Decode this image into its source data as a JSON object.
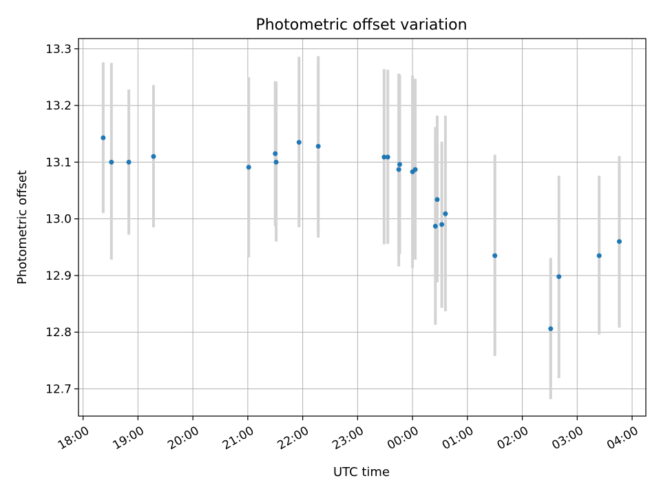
{
  "chart_data": {
    "type": "scatter",
    "title": "Photometric offset variation",
    "xlabel": "UTC time",
    "ylabel": "Photometric offset",
    "grid": true,
    "xlim": [
      "17:55",
      "04:15"
    ],
    "ylim": [
      12.652,
      13.318
    ],
    "x_ticks": [
      "18:00",
      "19:00",
      "20:00",
      "21:00",
      "22:00",
      "23:00",
      "00:00",
      "01:00",
      "02:00",
      "03:00",
      "04:00"
    ],
    "y_ticks": [
      12.7,
      12.8,
      12.9,
      13.0,
      13.1,
      13.2,
      13.3
    ],
    "y_tick_labels": [
      "12.7",
      "12.8",
      "12.9",
      "13.0",
      "13.1",
      "13.2",
      "13.3"
    ],
    "points": [
      {
        "x": "18:22",
        "y": 13.143,
        "err_low": 13.01,
        "err_high": 13.276
      },
      {
        "x": "18:31",
        "y": 13.1,
        "err_low": 12.928,
        "err_high": 13.275
      },
      {
        "x": "18:50",
        "y": 13.1,
        "err_low": 12.972,
        "err_high": 13.228
      },
      {
        "x": "19:17",
        "y": 13.11,
        "err_low": 12.985,
        "err_high": 13.236
      },
      {
        "x": "21:01",
        "y": 13.091,
        "err_low": 12.932,
        "err_high": 13.25
      },
      {
        "x": "21:30",
        "y": 13.115,
        "err_low": 12.987,
        "err_high": 13.243
      },
      {
        "x": "21:31",
        "y": 13.1,
        "err_low": 12.96,
        "err_high": 13.242
      },
      {
        "x": "21:56",
        "y": 13.135,
        "err_low": 12.985,
        "err_high": 13.286
      },
      {
        "x": "22:17",
        "y": 13.128,
        "err_low": 12.967,
        "err_high": 13.287
      },
      {
        "x": "23:29",
        "y": 13.109,
        "err_low": 12.955,
        "err_high": 13.264
      },
      {
        "x": "23:33",
        "y": 13.109,
        "err_low": 12.956,
        "err_high": 13.263
      },
      {
        "x": "23:45",
        "y": 13.087,
        "err_low": 12.916,
        "err_high": 13.256
      },
      {
        "x": "23:46",
        "y": 13.096,
        "err_low": 12.938,
        "err_high": 13.254
      },
      {
        "x": "00:00",
        "y": 13.083,
        "err_low": 12.913,
        "err_high": 13.253
      },
      {
        "x": "00:03",
        "y": 13.087,
        "err_low": 12.928,
        "err_high": 13.247
      },
      {
        "x": "00:25",
        "y": 12.987,
        "err_low": 12.813,
        "err_high": 13.162
      },
      {
        "x": "00:27",
        "y": 13.034,
        "err_low": 12.888,
        "err_high": 13.182
      },
      {
        "x": "00:32",
        "y": 12.99,
        "err_low": 12.843,
        "err_high": 13.136
      },
      {
        "x": "00:36",
        "y": 13.009,
        "err_low": 12.837,
        "err_high": 13.182
      },
      {
        "x": "01:30",
        "y": 12.935,
        "err_low": 12.758,
        "err_high": 13.113
      },
      {
        "x": "02:31",
        "y": 12.806,
        "err_low": 12.682,
        "err_high": 12.931
      },
      {
        "x": "02:40",
        "y": 12.898,
        "err_low": 12.719,
        "err_high": 13.076
      },
      {
        "x": "03:24",
        "y": 12.935,
        "err_low": 12.796,
        "err_high": 13.076
      },
      {
        "x": "03:46",
        "y": 12.96,
        "err_low": 12.808,
        "err_high": 13.111
      }
    ],
    "colors": {
      "marker": "#1f77b4",
      "errorbar": "#d3d3d3",
      "grid": "#b0b0b0"
    }
  }
}
